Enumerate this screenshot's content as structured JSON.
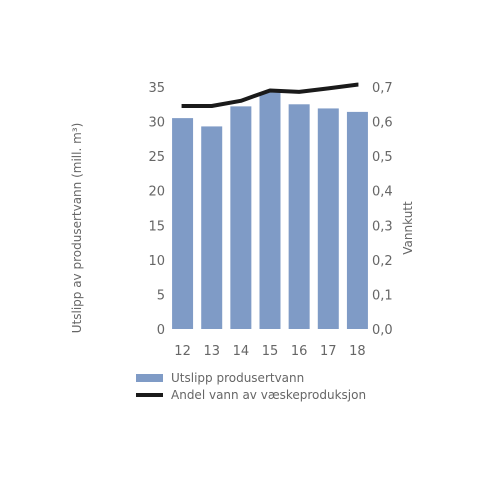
{
  "chart_data": {
    "type": "bar",
    "categories": [
      "12",
      "13",
      "14",
      "15",
      "16",
      "17",
      "18"
    ],
    "series": [
      {
        "name": "Utslipp produsertvann",
        "axis": "left",
        "kind": "bar",
        "values": [
          30.5,
          29.3,
          32.2,
          34.2,
          32.5,
          31.9,
          31.4
        ]
      },
      {
        "name": "Andel vann av væskeproduksjon",
        "axis": "right",
        "kind": "line",
        "values": [
          0.645,
          0.645,
          0.66,
          0.69,
          0.686,
          0.696,
          0.707
        ]
      }
    ],
    "ylabel": "Utslipp av produsertvann (mill. m³)",
    "y2label": "Vannkutt",
    "ylim": [
      0,
      35
    ],
    "y2lim": [
      0,
      0.7
    ],
    "yticks": [
      "0",
      "5",
      "10",
      "15",
      "20",
      "25",
      "30",
      "35"
    ],
    "y2ticks": [
      "0,0",
      "0,1",
      "0,2",
      "0,3",
      "0,4",
      "0,5",
      "0,6",
      "0,7"
    ],
    "grid": false,
    "legend_position": "bottom",
    "colors": {
      "bar": "#7f9bc6",
      "line": "#1a1a1a",
      "text": "#666666"
    }
  }
}
